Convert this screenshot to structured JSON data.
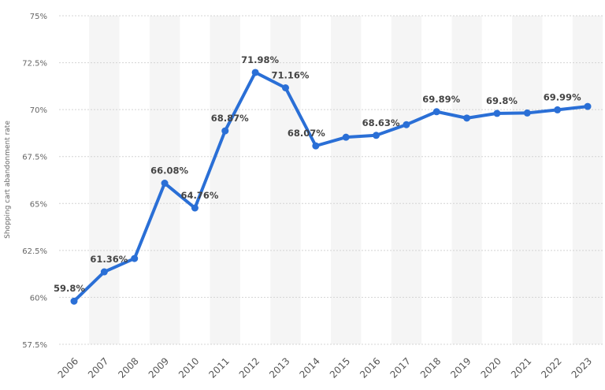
{
  "chart_data": {
    "type": "line",
    "title": "",
    "xlabel": "",
    "ylabel": "Shopping cart abandonment rate",
    "ylim": [
      57.5,
      75
    ],
    "yticks": [
      57.5,
      60,
      62.5,
      65,
      67.5,
      70,
      72.5,
      75
    ],
    "ytick_labels": [
      "57.5%",
      "60%",
      "62.5%",
      "65%",
      "67.5%",
      "70%",
      "72.5%",
      "75%"
    ],
    "grid": true,
    "categories": [
      "2006",
      "2007",
      "2008",
      "2009",
      "2010",
      "2011",
      "2012",
      "2013",
      "2014",
      "2015",
      "2016",
      "2017",
      "2018",
      "2019",
      "2020",
      "2021",
      "2022",
      "2023"
    ],
    "values": [
      59.8,
      61.36,
      62.07,
      66.08,
      64.76,
      68.87,
      71.98,
      71.16,
      68.07,
      68.53,
      68.63,
      69.2,
      69.89,
      69.55,
      69.8,
      69.82,
      69.99,
      70.17
    ],
    "data_labels": [
      "59.8%",
      "61.36%",
      null,
      "66.08%",
      "64.76%",
      "68.87%",
      "71.98%",
      "71.16%",
      "68.07%",
      null,
      "68.63%",
      null,
      "69.89%",
      null,
      "69.8%",
      null,
      "69.99%",
      null
    ],
    "line_color": "#2a6fd6"
  }
}
